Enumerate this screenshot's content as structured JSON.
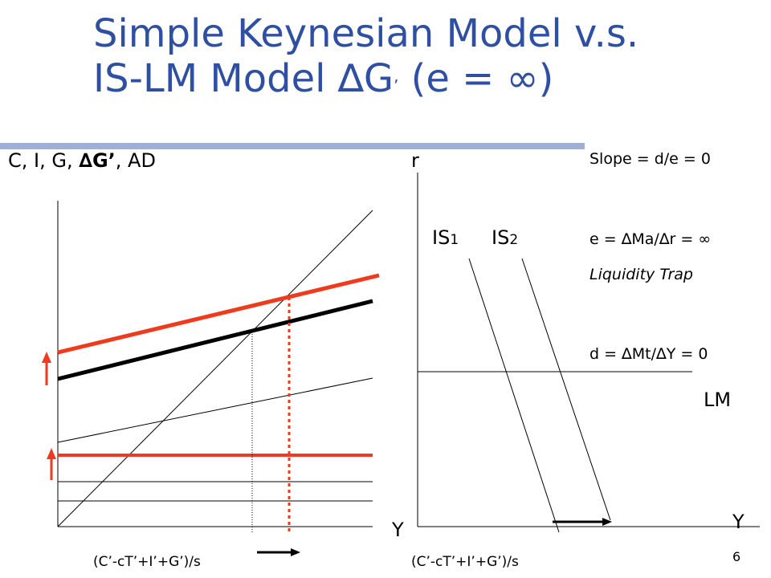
{
  "title": {
    "line1": "Simple Keynesian Model v.s.",
    "line2_prefix": "IS-LM Model ",
    "line2_delta": "∆G",
    "line2_prime": "’",
    "line2_suffix": " (e = ∞)"
  },
  "left_panel": {
    "y_axis_label_prefix": "C, I, G, ",
    "y_axis_label_bold": "∆G’",
    "y_axis_label_suffix": ", AD",
    "x_axis_label": "Y",
    "multiplier_label": "(C’-cT’+I’+G’)/s"
  },
  "right_panel": {
    "y_axis_label": "r",
    "x_axis_label": "Y",
    "is1_label": "IS",
    "is1_sub": "1",
    "is2_label": "IS",
    "is2_sub": "2",
    "lm_label": "LM",
    "multiplier_label": "(C’-cT’+I’+G’)/s"
  },
  "notes": {
    "slope": "Slope = d/e = 0",
    "e_def": "e = ∆Ma/∆r = ∞",
    "trap": "Liquidity Trap",
    "d_def": "d = ∆Mt/∆Y = 0"
  },
  "page_number": "6",
  "colors": {
    "title": "#2e4fa2",
    "rule": "#9fb0d6",
    "shift": "#ee3a1d",
    "black": "#000000"
  }
}
